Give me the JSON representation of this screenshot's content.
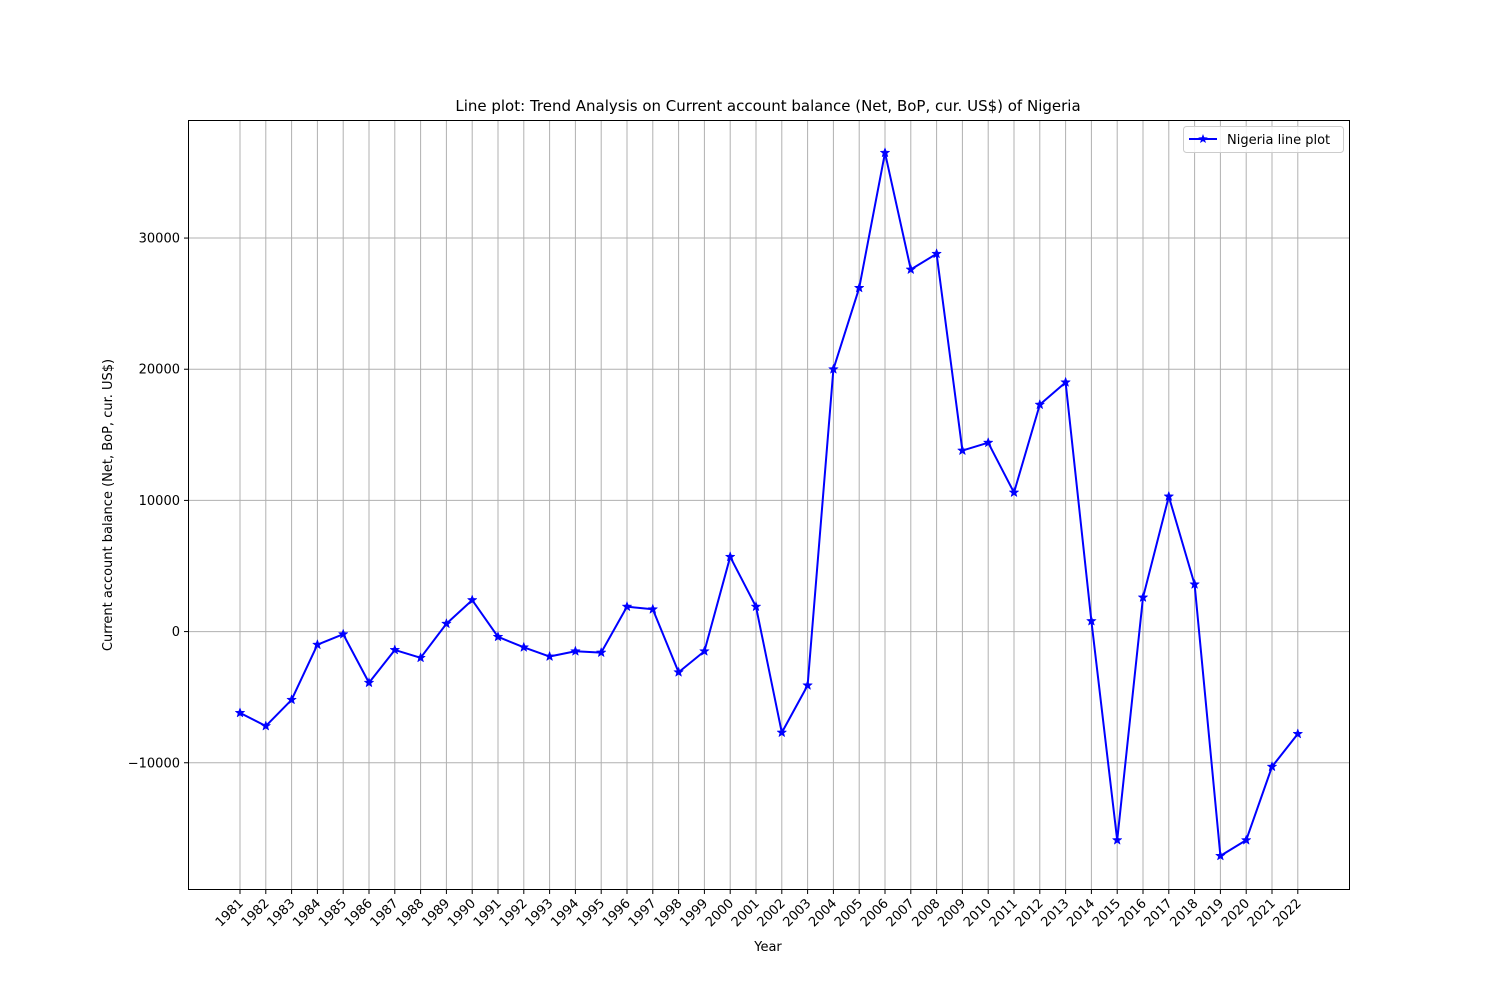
{
  "chart_data": {
    "type": "line",
    "title": "Line plot: Trend Analysis on Current account balance (Net, BoP, cur. US$) of Nigeria",
    "xlabel": "Year",
    "ylabel": "Current account balance (Net, BoP, cur. US$)",
    "ylim": [
      -19700,
      39000
    ],
    "yticks": [
      -10000,
      0,
      10000,
      20000,
      30000
    ],
    "grid": true,
    "legend_position": "top-right",
    "categories": [
      "1981",
      "1982",
      "1983",
      "1984",
      "1985",
      "1986",
      "1987",
      "1988",
      "1989",
      "1990",
      "1991",
      "1992",
      "1993",
      "1994",
      "1995",
      "1996",
      "1997",
      "1998",
      "1999",
      "2000",
      "2001",
      "2002",
      "2003",
      "2004",
      "2005",
      "2006",
      "2007",
      "2008",
      "2009",
      "2010",
      "2011",
      "2012",
      "2013",
      "2014",
      "2015",
      "2016",
      "2017",
      "2018",
      "2019",
      "2020",
      "2021",
      "2022"
    ],
    "series": [
      {
        "name": "Nigeria line plot",
        "color": "#0000ff",
        "marker": "star",
        "values": [
          -6200,
          -7200,
          -5200,
          -1000,
          -200,
          -3900,
          -1400,
          -2000,
          600,
          2400,
          -400,
          -1200,
          -1900,
          -1500,
          -1600,
          1900,
          1700,
          -3100,
          -1500,
          5700,
          1900,
          -7700,
          -4100,
          20000,
          26200,
          36500,
          27600,
          28800,
          13800,
          14400,
          10600,
          17300,
          19000,
          800,
          -15900,
          2600,
          10300,
          3600,
          -17100,
          -15900,
          -10300,
          -7800
        ]
      }
    ]
  }
}
